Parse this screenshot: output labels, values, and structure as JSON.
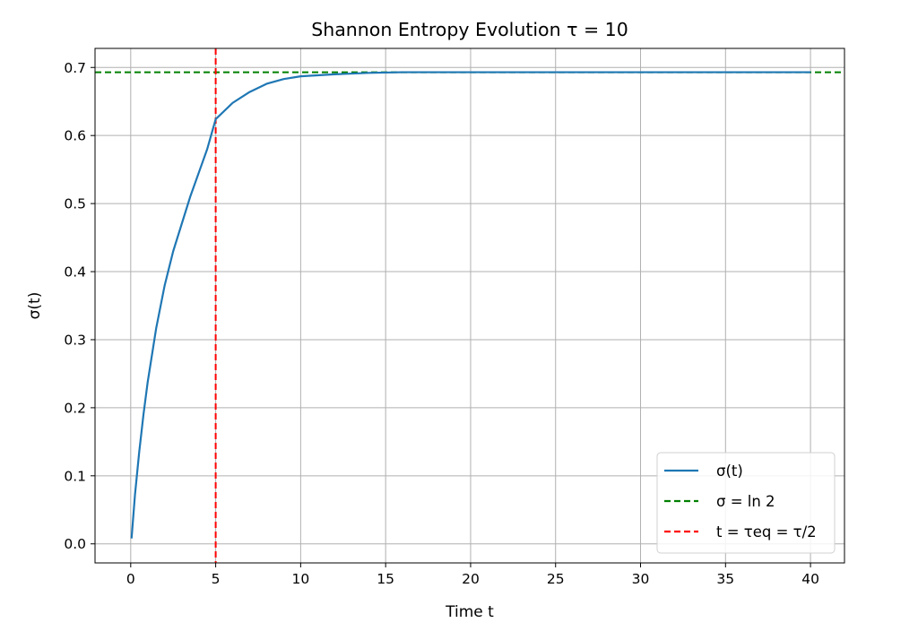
{
  "chart_data": {
    "type": "line",
    "title": "Shannon Entropy Evolution τ = 10",
    "xlabel": "Time t",
    "ylabel": "σ(t)",
    "xlim": [
      -2.1,
      42
    ],
    "ylim": [
      -0.028,
      0.728
    ],
    "xticks": [
      0,
      5,
      10,
      15,
      20,
      25,
      30,
      35,
      40
    ],
    "yticks": [
      0.0,
      0.1,
      0.2,
      0.3,
      0.4,
      0.5,
      0.6,
      0.7
    ],
    "ytick_labels": [
      "0.0",
      "0.1",
      "0.2",
      "0.3",
      "0.4",
      "0.5",
      "0.6",
      "0.7"
    ],
    "grid": true,
    "legend_position": "lower-right",
    "series": [
      {
        "name": "σ(t)",
        "color": "#1f77b4",
        "style": "solid",
        "x": [
          0.05,
          0.25,
          0.5,
          0.75,
          1,
          1.5,
          2,
          2.5,
          3,
          3.5,
          4,
          4.5,
          5,
          6,
          7,
          8,
          9,
          10,
          12,
          14,
          16,
          18,
          20,
          25,
          30,
          35,
          40
        ],
        "y": [
          0.008,
          0.072,
          0.135,
          0.19,
          0.238,
          0.317,
          0.38,
          0.43,
          0.47,
          0.51,
          0.545,
          0.58,
          0.624,
          0.648,
          0.664,
          0.676,
          0.683,
          0.687,
          0.69,
          0.692,
          0.693,
          0.693,
          0.693,
          0.693,
          0.693,
          0.693,
          0.693
        ]
      }
    ],
    "reference_lines": [
      {
        "name": "σ = ln 2",
        "orientation": "horizontal",
        "value": 0.693,
        "color": "#008000",
        "style": "dashed"
      },
      {
        "name": "t = τeq = τ/2",
        "orientation": "vertical",
        "value": 5,
        "color": "#ff0000",
        "style": "dashed"
      }
    ]
  }
}
